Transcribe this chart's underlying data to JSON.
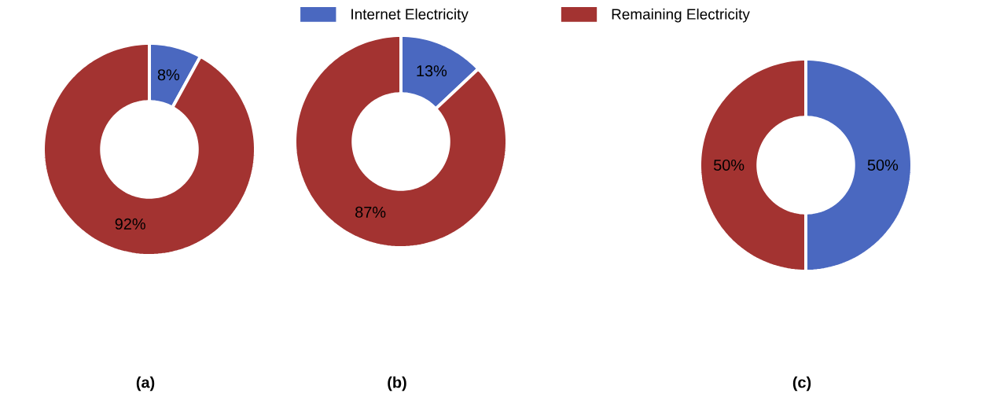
{
  "chart_data": [
    {
      "type": "donut",
      "title": "(a)",
      "categories": [
        null,
        null
      ],
      "values": [
        8,
        92
      ],
      "colors": [
        "#4a68c0",
        "#a33331"
      ],
      "value_labels": [
        "8%",
        "92%"
      ]
    },
    {
      "type": "donut",
      "title": "(b)",
      "categories": [
        null,
        null
      ],
      "values": [
        13,
        87
      ],
      "colors": [
        "#4a68c0",
        "#a33331"
      ],
      "value_labels": [
        "13%",
        "87%"
      ]
    },
    {
      "type": "donut",
      "title": "(c)",
      "categories": [
        "Internet Electricity",
        "Remaining Electricity"
      ],
      "values": [
        50,
        50
      ],
      "colors": [
        "#4a68c0",
        "#a33331"
      ],
      "value_labels": [
        "50%",
        "50%"
      ],
      "legend": "top"
    }
  ]
}
